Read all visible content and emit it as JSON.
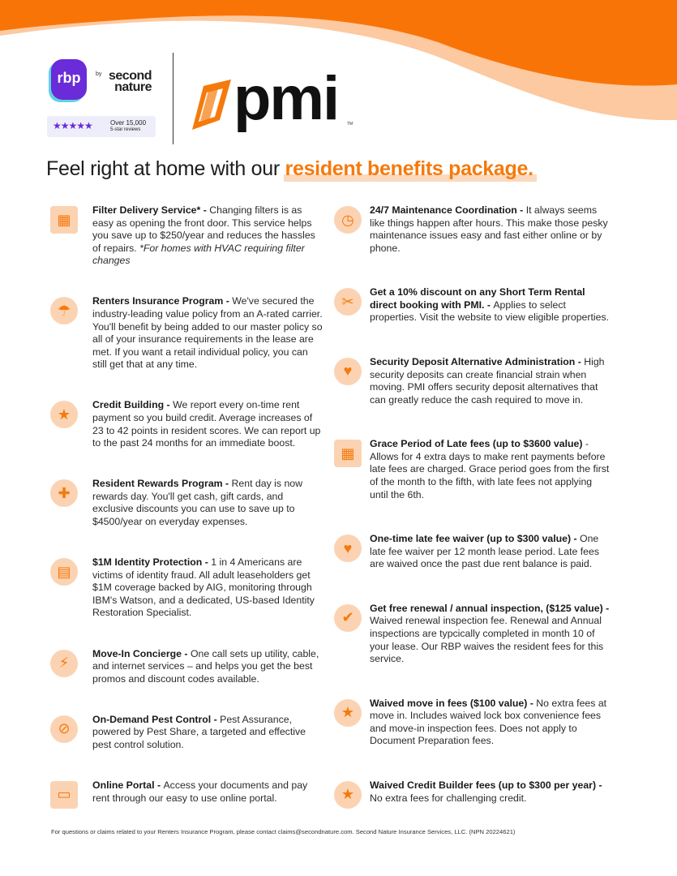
{
  "brand": {
    "rbp": "rbp",
    "by": "by",
    "second_nature": "second\nnature",
    "reviews_line1": "Over 15,000",
    "reviews_line2": "5-star reviews",
    "stars": "★★★★★",
    "pmi": "pmi",
    "tm": "TM",
    "colors": {
      "orange": "#f57a0c",
      "peach": "#fcd0ac",
      "purple": "#6a2bd9"
    }
  },
  "headline": {
    "plain": "Feel right at home with our ",
    "highlight": "resident benefits package."
  },
  "left": [
    {
      "icon": "air-filter-icon",
      "title": "Filter Delivery Service* - ",
      "desc": "Changing filters is as easy as opening the front door. This service helps you save up to $250/year and reduces the hassles of repairs. ",
      "note": "*For homes with HVAC requiring filter changes"
    },
    {
      "icon": "umbrella-house-icon",
      "title": "Renters Insurance Program - ",
      "desc": "We've secured the industry-leading value policy from an A-rated carrier. You'll benefit by being added to our master policy so all of your insurance requirements in the lease are met. If you want a retail individual policy, you can still get that at any time."
    },
    {
      "icon": "credit-gauge-icon",
      "title": "Credit Building - ",
      "desc": "We report every on-time rent payment so you build credit. Average increases of 23 to 42 points in resident scores. We can report up to the past 24 months for an immediate boost."
    },
    {
      "icon": "gift-icon",
      "title": "Resident Rewards Program - ",
      "desc": "Rent day is now rewards day. You'll get cash, gift cards, and exclusive discounts you can use to save up to $4500/year on everyday expenses."
    },
    {
      "icon": "id-card-icon",
      "title": "$1M Identity Protection - ",
      "desc": "1 in 4 Americans are victims of identity fraud. All adult leaseholders get $1M coverage backed by AIG, monitoring through IBM's Watson, and a dedicated, US-based Identity Restoration Specialist."
    },
    {
      "icon": "utilities-icon",
      "title": "Move-In Concierge - ",
      "desc": "One call sets up utility, cable, and internet services – and helps you get the best promos and discount codes available."
    },
    {
      "icon": "no-bug-icon",
      "title": "On-Demand Pest Control - ",
      "desc": "Pest Assurance, powered by Pest Share, a targeted and effective pest control solution."
    },
    {
      "icon": "monitor-icon",
      "title": "Online Portal - ",
      "desc": "Access your documents and pay rent through our easy to use online portal."
    }
  ],
  "right": [
    {
      "icon": "clock-icon",
      "title": "24/7 Maintenance Coordination - ",
      "desc": "It always seems like things happen after hours. This make those pesky maintenance issues easy and fast either online or by phone."
    },
    {
      "icon": "discount-tag-icon",
      "title": "Get a 10% discount on any Short Term Rental direct booking with PMI. - ",
      "desc": "Applies to select properties. Visit the website to view eligible properties."
    },
    {
      "icon": "heart-lock-icon",
      "title": "Security Deposit Alternative Administration - ",
      "desc": "High security deposits can create financial strain when moving. PMI offers security deposit alternatives that can greatly reduce the cash required to move in."
    },
    {
      "icon": "calendar-icon",
      "title": "Grace Period of Late fees (up to $3600 value) ",
      "desc": "- Allows for 4 extra days to make rent payments before late fees are charged. Grace period goes from the first of the month to the fifth, with late fees not applying until the 6th."
    },
    {
      "icon": "heart-hand-icon",
      "title": "One-time late fee waiver (up to $300 value) - ",
      "desc": "One late fee waiver per 12 month lease period. Late fees are waived once the past due rent balance is paid."
    },
    {
      "icon": "inspection-magnifier-icon",
      "title": "Get free renewal / annual inspection, ($125 value) - ",
      "desc": "Waived renewal inspection fee. Renewal and Annual inspections are typcically completed in month 10 of your lease. Our RBP waives the resident fees for this service."
    },
    {
      "icon": "star-box-icon",
      "title": "Waived move in fees ($100 value) - ",
      "desc": "No extra fees at move in. Includes waived lock box convenience fees and move-in inspection fees. Does not apply to Document Preparation fees."
    },
    {
      "icon": "credit-gauge-icon",
      "title": "Waived Credit Builder fees (up to $300 per year) - ",
      "desc": "No extra fees for challenging credit."
    }
  ],
  "footer": "For questions or claims related to your Renters Insurance Program, please contact claims@secondnature.com. Second Nature Insurance Services, LLC. (NPN 20224621)"
}
